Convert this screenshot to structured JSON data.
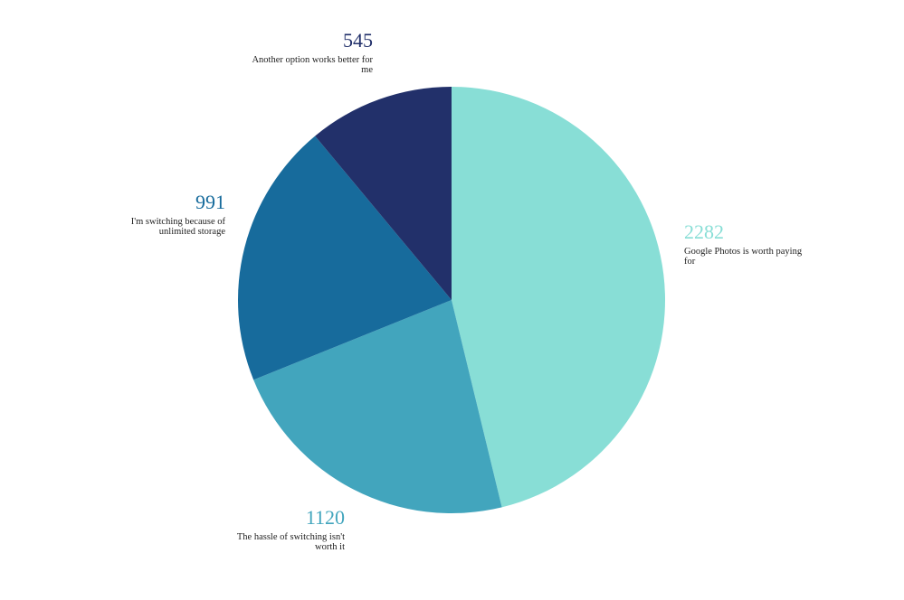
{
  "chart_data": {
    "type": "pie",
    "title": "",
    "slices": [
      {
        "label": "Google Photos is worth paying for",
        "value": 2282,
        "value_text": "2282",
        "color": "#88ded6"
      },
      {
        "label": "The hassle of switching isn't worth it",
        "value": 1120,
        "value_text": "1120",
        "color": "#42a5bd"
      },
      {
        "label": "I'm switching because of unlimited storage",
        "value": 991,
        "value_text": "991",
        "color": "#176b9c"
      },
      {
        "label": "Another option works better for me",
        "value": 545,
        "value_text": "545",
        "color": "#22306a"
      }
    ],
    "start_angle": "12 o'clock",
    "direction": "clockwise",
    "legend": "none"
  }
}
